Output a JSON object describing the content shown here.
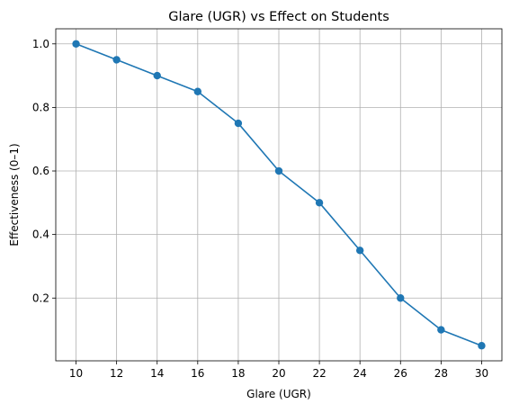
{
  "chart_data": {
    "type": "line",
    "title": "Glare (UGR) vs Effect on Students",
    "xlabel": "Glare (UGR)",
    "ylabel": "Effectiveness (0–1)",
    "x": [
      10,
      12,
      14,
      16,
      18,
      20,
      22,
      24,
      26,
      28,
      30
    ],
    "series": [
      {
        "values": [
          1.0,
          0.95,
          0.9,
          0.85,
          0.75,
          0.6,
          0.5,
          0.35,
          0.2,
          0.1,
          0.05
        ],
        "color": "#1f77b4",
        "marker": "circle"
      }
    ],
    "xticks": [
      10,
      12,
      14,
      16,
      18,
      20,
      22,
      24,
      26,
      28,
      30
    ],
    "xtick_labels": [
      "10",
      "12",
      "14",
      "16",
      "18",
      "20",
      "22",
      "24",
      "26",
      "28",
      "30"
    ],
    "yticks": [
      0.2,
      0.4,
      0.6,
      0.8,
      1.0
    ],
    "ytick_labels": [
      "0.2",
      "0.4",
      "0.6",
      "0.8",
      "1.0"
    ],
    "xlim": [
      9.0,
      31.0
    ],
    "ylim": [
      0.0025,
      1.0475
    ],
    "grid": true,
    "legend": "none"
  }
}
